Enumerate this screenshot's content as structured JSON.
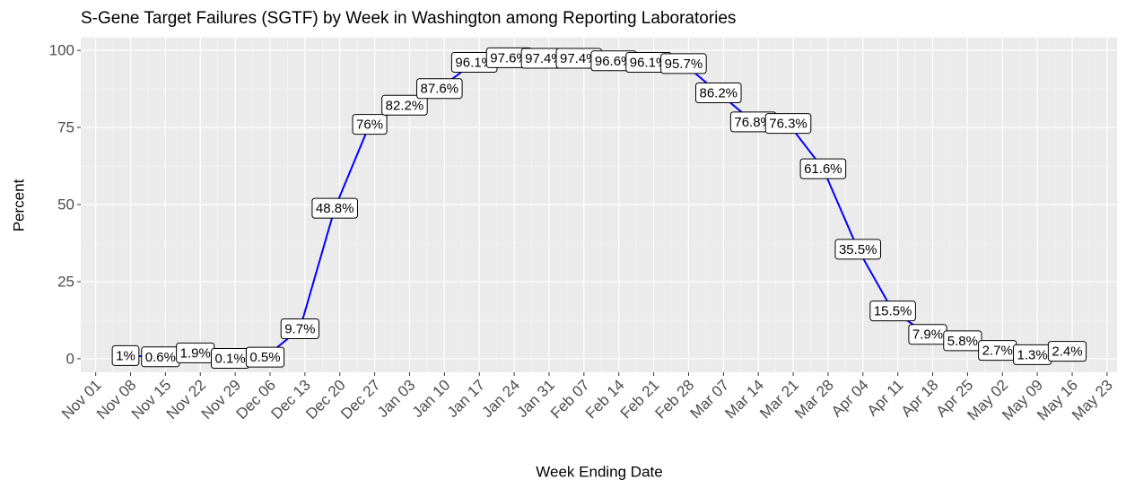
{
  "chart_data": {
    "type": "line",
    "title": "S-Gene Target Failures (SGTF) by Week in Washington among Reporting Laboratories",
    "xlabel": "Week Ending Date",
    "ylabel": "Percent",
    "x": [
      "Nov 07",
      "Nov 14",
      "Nov 21",
      "Nov 28",
      "Dec 05",
      "Dec 12",
      "Dec 19",
      "Dec 26",
      "Jan 02",
      "Jan 09",
      "Jan 16",
      "Jan 23",
      "Jan 30",
      "Feb 06",
      "Feb 13",
      "Feb 20",
      "Feb 27",
      "Mar 06",
      "Mar 13",
      "Mar 20",
      "Mar 27",
      "Apr 03",
      "Apr 10",
      "Apr 17",
      "Apr 24",
      "May 01",
      "May 08",
      "May 15"
    ],
    "values": [
      1,
      0.6,
      1.9,
      0.1,
      0.5,
      9.7,
      48.8,
      76,
      82.2,
      87.6,
      96.1,
      97.6,
      97.4,
      97.4,
      96.6,
      96.1,
      95.7,
      86.2,
      76.8,
      76.3,
      61.6,
      35.5,
      15.5,
      7.9,
      5.8,
      2.7,
      1.3,
      2.4
    ],
    "value_labels": [
      "1%",
      "0.6%",
      "1.9%",
      "0.1%",
      "0.5%",
      "9.7%",
      "48.8%",
      "76%",
      "82.2%",
      "87.6%",
      "96.1%",
      "97.6%",
      "97.4%",
      "97.4%",
      "96.6%",
      "96.1%",
      "95.7%",
      "86.2%",
      "76.8%",
      "76.3%",
      "61.6%",
      "35.5%",
      "15.5%",
      "7.9%",
      "5.8%",
      "2.7%",
      "1.3%",
      "2.4%"
    ],
    "color": "#0000ff",
    "xlim": [
      "Oct 29",
      "May 25"
    ],
    "xticks": [
      "Nov 01",
      "Nov 08",
      "Nov 15",
      "Nov 22",
      "Nov 29",
      "Dec 06",
      "Dec 13",
      "Dec 20",
      "Dec 27",
      "Jan 03",
      "Jan 10",
      "Jan 17",
      "Jan 24",
      "Jan 31",
      "Feb 07",
      "Feb 14",
      "Feb 21",
      "Feb 28",
      "Mar 07",
      "Mar 14",
      "Mar 21",
      "Mar 28",
      "Apr 04",
      "Apr 11",
      "Apr 18",
      "Apr 25",
      "May 02",
      "May 09",
      "May 16",
      "May 23"
    ],
    "ylim": [
      -4.4,
      104.1
    ],
    "yticks": [
      0,
      25,
      50,
      75,
      100
    ],
    "grid": true
  }
}
